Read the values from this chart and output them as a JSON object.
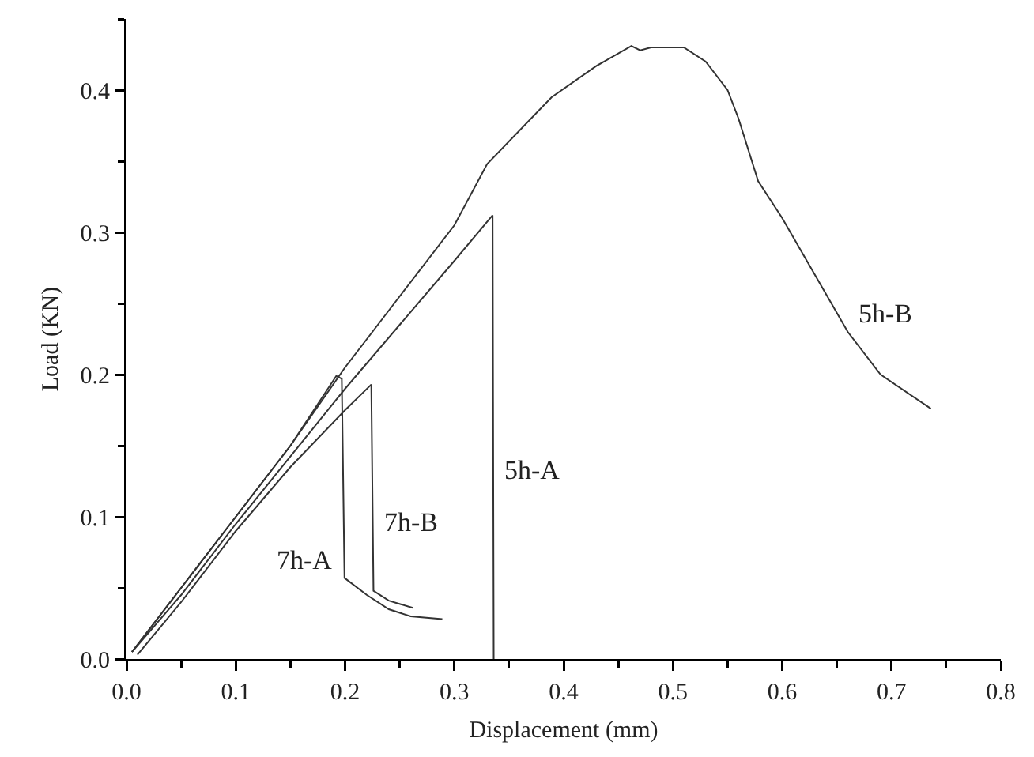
{
  "chart_data": {
    "type": "line",
    "xlabel": "Displacement (mm)",
    "ylabel": "Load (KN)",
    "xlim": [
      0,
      0.8
    ],
    "ylim": [
      0,
      0.45
    ],
    "xticks": [
      {
        "value": 0,
        "label": "0.0"
      },
      0.1,
      0.2,
      0.3,
      0.4,
      0.5,
      0.6,
      0.7,
      0.8
    ],
    "yticks": [
      {
        "value": 0,
        "label": "0.0"
      },
      0.1,
      0.2,
      0.3,
      0.4
    ],
    "grid": false,
    "line_style": "solid",
    "marker": "none",
    "series": [
      {
        "color": "#333333",
        "x": [
          0.005,
          0.05,
          0.1,
          0.15,
          0.2,
          0.25,
          0.3,
          0.33,
          0.389,
          0.43,
          0.462,
          0.47,
          0.48,
          0.51,
          0.53,
          0.55,
          0.56,
          0.578,
          0.6,
          0.63,
          0.66,
          0.69,
          0.736
        ],
        "values": [
          0.005,
          0.05,
          0.1,
          0.15,
          0.205,
          0.255,
          0.305,
          0.348,
          0.395,
          0.417,
          0.431,
          0.428,
          0.43,
          0.43,
          0.42,
          0.4,
          0.38,
          0.336,
          0.31,
          0.27,
          0.23,
          0.2,
          0.176
        ]
      },
      {
        "color": "#333333",
        "x": [
          0.005,
          0.05,
          0.1,
          0.2,
          0.3,
          0.335,
          0.336
        ],
        "values": [
          0.005,
          0.045,
          0.095,
          0.19,
          0.28,
          0.312,
          0
        ]
      },
      {
        "color": "#333333",
        "x": [
          0.005,
          0.05,
          0.1,
          0.15,
          0.192,
          0.197,
          0.1995,
          0.22,
          0.24,
          0.26,
          0.289
        ],
        "values": [
          0.005,
          0.05,
          0.1,
          0.15,
          0.199,
          0.197,
          0.057,
          0.045,
          0.035,
          0.03,
          0.028
        ]
      },
      {
        "color": "#333333",
        "x": [
          0.01,
          0.05,
          0.1,
          0.15,
          0.2,
          0.224,
          0.226,
          0.24,
          0.262
        ],
        "values": [
          0.003,
          0.04,
          0.09,
          0.135,
          0.175,
          0.193,
          0.048,
          0.041,
          0.036
        ]
      }
    ],
    "annotations": [
      {
        "text": "5h-B",
        "x": 0.66,
        "y": 0.23
      },
      {
        "text": "5h-A",
        "x": 0.336,
        "y": 0.12
      },
      {
        "text": "7h-B",
        "x": 0.2255,
        "y": 0.083
      },
      {
        "text": "7h-A",
        "x": 0.1995,
        "y": 0.057
      }
    ]
  }
}
